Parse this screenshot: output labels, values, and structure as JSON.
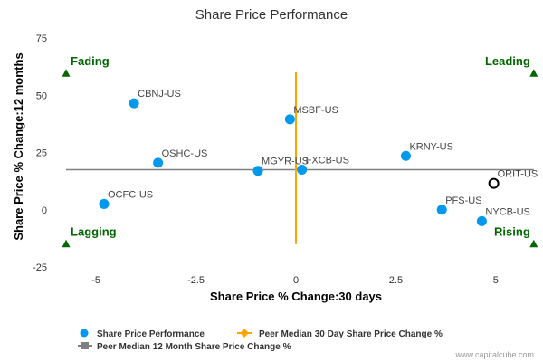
{
  "chart_data": {
    "type": "scatter",
    "title": "Share Price Performance",
    "xlabel": "Share Price % Change:30 days",
    "ylabel": "Share Price % Change:12 months",
    "xlim": [
      -6,
      6
    ],
    "ylim": [
      -25,
      75
    ],
    "x_ticks": [
      -5,
      -2.5,
      0,
      2.5,
      5
    ],
    "x_tick_labels": [
      "-5",
      "-2.5",
      "0",
      "2.5",
      "5"
    ],
    "y_ticks": [
      -25,
      0,
      25,
      50,
      75
    ],
    "y_tick_labels": [
      "-25",
      "0",
      "25",
      "50",
      "75"
    ],
    "grid": false,
    "series": [
      {
        "name": "Share Price Performance",
        "color": "#0099ee",
        "points": [
          {
            "label": "CBNJ-US",
            "x": -4.05,
            "y": 46.5
          },
          {
            "label": "OSHC-US",
            "x": -3.45,
            "y": 20.5
          },
          {
            "label": "OCFC-US",
            "x": -4.8,
            "y": 2.5
          },
          {
            "label": "MSBF-US",
            "x": -0.15,
            "y": 39.5
          },
          {
            "label": "MGYR-US",
            "x": -0.95,
            "y": 17.0
          },
          {
            "label": "FXCB-US",
            "x": 0.15,
            "y": 17.5
          },
          {
            "label": "KRNY-US",
            "x": 2.75,
            "y": 23.5
          },
          {
            "label": "PFS-US",
            "x": 3.65,
            "y": 0.0
          },
          {
            "label": "NYCB-US",
            "x": 4.65,
            "y": -5.0
          }
        ]
      }
    ],
    "highlight": {
      "label": "ORIT-US",
      "x": 4.95,
      "y": 11.5,
      "color": "#000000"
    },
    "peer_median_30d": {
      "name": "Peer Median 30 Day Share Price Change %",
      "value": 0.0,
      "y_range": [
        -15,
        60
      ],
      "color": "#ffa500"
    },
    "peer_median_12m": {
      "name": "Peer Median 12 Month Share Price Change %",
      "value": 17.5,
      "x_range": [
        -5.75,
        5.95
      ],
      "color": "#808080"
    },
    "quadrants": [
      {
        "label": "Fading",
        "position": "top-left",
        "x": -5.75,
        "y": 59.5
      },
      {
        "label": "Leading",
        "position": "top-right",
        "x": 5.95,
        "y": 59.5
      },
      {
        "label": "Lagging",
        "position": "bottom-left",
        "x": -5.75,
        "y": -15.0
      },
      {
        "label": "Rising",
        "position": "bottom-right",
        "x": 5.95,
        "y": -15.0
      }
    ],
    "quadrant_color": "#006600",
    "legend_position": "bottom-left"
  },
  "legend": {
    "item1": "Share Price Performance",
    "item2": "Peer Median 30 Day Share Price Change %",
    "item3": "Peer Median 12 Month Share Price Change %"
  },
  "credit": "www.capitalcube.com"
}
